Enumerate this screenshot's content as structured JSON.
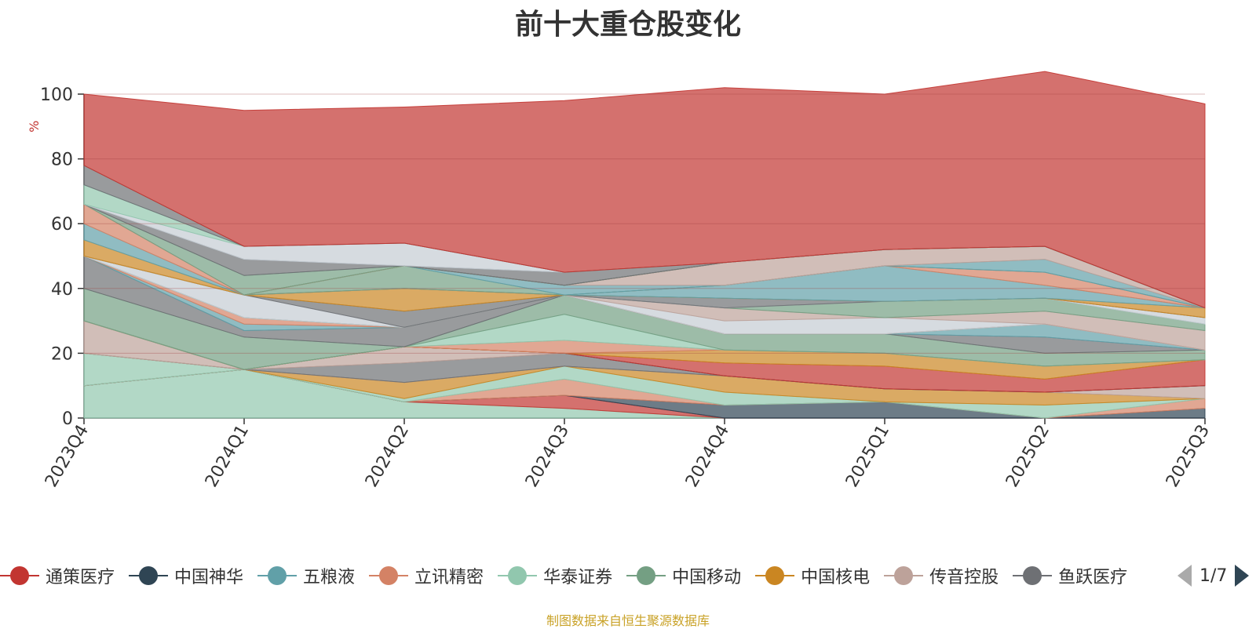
{
  "title": "前十大重仓股变化",
  "source_note": "制图数据来自恒生聚源数据库",
  "pager": {
    "text": "1/7"
  },
  "chart_data": {
    "type": "area",
    "stacked": true,
    "ylabel": "%",
    "ylim": [
      0,
      100
    ],
    "yticks": [
      0,
      20,
      40,
      60,
      80,
      100
    ],
    "grid": true,
    "legend_position": "bottom",
    "categories": [
      "2023Q4",
      "2024Q1",
      "2024Q2",
      "2024Q3",
      "2024Q4",
      "2025Q1",
      "2025Q2",
      "2025Q3"
    ],
    "layers": [
      {
        "color": "#91c7ae",
        "values": [
          10,
          15,
          5,
          3,
          0,
          0,
          0,
          0
        ]
      },
      {
        "color": "#c23531",
        "values": [
          0,
          0,
          0,
          4,
          0,
          0,
          0,
          0
        ]
      },
      {
        "color": "#2f4554",
        "values": [
          0,
          0,
          0,
          0,
          4,
          5,
          0,
          3
        ]
      },
      {
        "color": "#d48265",
        "values": [
          0,
          0,
          0,
          5,
          0,
          0,
          0,
          3
        ]
      },
      {
        "color": "#91c7ae",
        "values": [
          10,
          0,
          1,
          4,
          4,
          0,
          4,
          0
        ]
      },
      {
        "color": "#ca8622",
        "values": [
          0,
          0,
          5,
          0,
          5,
          4,
          4,
          0
        ]
      },
      {
        "color": "#bda29a",
        "values": [
          0,
          0,
          0,
          0,
          0,
          0,
          0,
          4
        ]
      },
      {
        "color": "#6e7074",
        "values": [
          0,
          0,
          6,
          4,
          0,
          0,
          0,
          0
        ]
      },
      {
        "color": "#bda29a",
        "values": [
          10,
          0,
          5,
          0,
          0,
          0,
          0,
          0
        ]
      },
      {
        "color": "#2f4554",
        "values": [
          0,
          0,
          0,
          0,
          0,
          0,
          0,
          0
        ]
      },
      {
        "color": "#c23531",
        "values": [
          0,
          0,
          0,
          0,
          4,
          7,
          4,
          8
        ]
      },
      {
        "color": "#ca8622",
        "values": [
          0,
          0,
          0,
          0,
          4,
          4,
          4,
          0
        ]
      },
      {
        "color": "#d48265",
        "values": [
          0,
          0,
          0,
          4,
          0,
          0,
          0,
          0
        ]
      },
      {
        "color": "#91c7ae",
        "values": [
          0,
          0,
          0,
          8,
          0,
          0,
          0,
          0
        ]
      },
      {
        "color": "#749f83",
        "values": [
          10,
          10,
          0,
          6,
          5,
          6,
          4,
          3
        ]
      },
      {
        "color": "#6e7074",
        "values": [
          10,
          2,
          6,
          0,
          0,
          0,
          5,
          0
        ]
      },
      {
        "color": "#61a0a8",
        "values": [
          0,
          2,
          0,
          0,
          0,
          0,
          4,
          0
        ]
      },
      {
        "color": "#d48265",
        "values": [
          0,
          2,
          0,
          0,
          0,
          0,
          0,
          0
        ]
      },
      {
        "color": "#c4ccd3",
        "values": [
          0,
          0,
          0,
          0,
          4,
          5,
          0,
          0
        ]
      },
      {
        "color": "#bda29a",
        "values": [
          0,
          0,
          0,
          0,
          4,
          0,
          4,
          6
        ]
      },
      {
        "color": "#749f83",
        "values": [
          0,
          0,
          0,
          0,
          0,
          5,
          4,
          2
        ]
      },
      {
        "color": "#c4ccd3",
        "values": [
          0,
          7,
          0,
          0,
          0,
          0,
          0,
          2
        ]
      },
      {
        "color": "#6e7074",
        "values": [
          0,
          0,
          5,
          0,
          3,
          0,
          0,
          0
        ]
      },
      {
        "color": "#ca8622",
        "values": [
          0,
          0,
          7,
          0,
          0,
          0,
          0,
          3
        ]
      },
      {
        "color": "#61a0a8",
        "values": [
          0,
          0,
          0,
          0,
          4,
          11,
          4,
          0
        ]
      },
      {
        "color": "#d48265",
        "values": [
          0,
          0,
          0,
          0,
          0,
          0,
          4,
          0
        ]
      },
      {
        "color": "#749f83",
        "values": [
          0,
          0,
          7,
          0,
          0,
          0,
          0,
          0
        ]
      },
      {
        "color": "#61a0a8",
        "values": [
          0,
          0,
          0,
          3,
          0,
          0,
          4,
          0
        ]
      },
      {
        "color": "#bda29a",
        "values": [
          0,
          0,
          0,
          0,
          7,
          5,
          4,
          0
        ]
      },
      {
        "color": "#c4ccd3",
        "values": [
          0,
          0,
          0,
          0,
          0,
          0,
          0,
          0
        ]
      },
      {
        "color": "#ca8622",
        "values": [
          5,
          0,
          0,
          0,
          0,
          0,
          0,
          0
        ]
      },
      {
        "color": "#61a0a8",
        "values": [
          5,
          0,
          0,
          0,
          0,
          0,
          0,
          0
        ]
      },
      {
        "color": "#d48265",
        "values": [
          6,
          0,
          0,
          0,
          0,
          0,
          0,
          0
        ]
      },
      {
        "color": "#749f83",
        "values": [
          0,
          6,
          0,
          0,
          0,
          0,
          0,
          0
        ]
      },
      {
        "color": "#6e7074",
        "values": [
          0,
          5,
          0,
          4,
          0,
          0,
          0,
          0
        ]
      },
      {
        "color": "#c4ccd3",
        "values": [
          0,
          4,
          7,
          0,
          0,
          0,
          0,
          0
        ]
      },
      {
        "color": "#91c7ae",
        "values": [
          6,
          0,
          0,
          0,
          0,
          0,
          0,
          0
        ]
      },
      {
        "color": "#6e7074",
        "values": [
          6,
          0,
          0,
          0,
          0,
          0,
          0,
          0
        ]
      },
      {
        "color": "#c23531",
        "values": [
          22,
          42,
          42,
          53,
          54,
          48,
          54,
          63
        ]
      }
    ],
    "legend": [
      {
        "name": "通策医疗",
        "color": "#c23531"
      },
      {
        "name": "中国神华",
        "color": "#2f4554"
      },
      {
        "name": "五粮液",
        "color": "#61a0a8"
      },
      {
        "name": "立讯精密",
        "color": "#d48265"
      },
      {
        "name": "华泰证券",
        "color": "#91c7ae"
      },
      {
        "name": "中国移动",
        "color": "#749f83"
      },
      {
        "name": "中国核电",
        "color": "#ca8622"
      },
      {
        "name": "传音控股",
        "color": "#bda29a"
      },
      {
        "name": "鱼跃医疗",
        "color": "#6e7074"
      }
    ]
  }
}
